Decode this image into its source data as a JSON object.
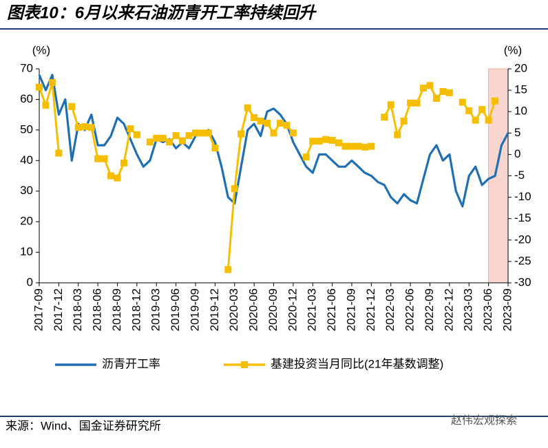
{
  "chart_data": {
    "type": "line",
    "title": "图表10：6月以来石油沥青开工率持续回升",
    "ylabel": "(%)",
    "y2label": "(%)",
    "source": "来源：Wind、国金证券研究所",
    "watermark": "赵伟宏观探索",
    "categories": [
      "2017-09",
      null,
      null,
      "2017-12",
      null,
      null,
      "2018-03",
      null,
      null,
      "2018-06",
      null,
      null,
      "2018-09",
      null,
      null,
      "2018-12",
      null,
      null,
      "2019-03",
      null,
      null,
      "2019-06",
      null,
      null,
      "2019-09",
      null,
      null,
      "2019-12",
      null,
      null,
      "2020-03",
      null,
      null,
      "2020-06",
      null,
      null,
      "2020-09",
      null,
      null,
      "2020-12",
      null,
      null,
      "2021-03",
      null,
      null,
      "2021-06",
      null,
      null,
      "2021-09",
      null,
      null,
      "2021-12",
      null,
      null,
      "2022-03",
      null,
      null,
      "2022-06",
      null,
      null,
      "2022-09",
      null,
      null,
      "2022-12",
      null,
      null,
      "2023-03",
      null,
      null,
      "2023-06",
      null,
      null,
      "2023-09"
    ],
    "ylim": [
      0,
      70
    ],
    "yticks": [
      0,
      10,
      20,
      30,
      40,
      50,
      60,
      70
    ],
    "y2lim": [
      -30,
      20
    ],
    "y2ticks": [
      -30,
      -25,
      -20,
      -15,
      -10,
      -5,
      0,
      5,
      10,
      15,
      20
    ],
    "shade": {
      "start": "2023-06",
      "end": "2023-09",
      "color": "#f8d5cf"
    },
    "series": [
      {
        "name": "沥青开工率",
        "color": "#1f6fb5",
        "axis": "y",
        "values": [
          68,
          63,
          68,
          55,
          60,
          40,
          52,
          50,
          55,
          45,
          45,
          48,
          54,
          52,
          47,
          42,
          38,
          40,
          47,
          46,
          47,
          44,
          46,
          44,
          48,
          49,
          50,
          46,
          38,
          28,
          26,
          38,
          50,
          52,
          48,
          56,
          57,
          55,
          52,
          46,
          42,
          38,
          36,
          42,
          42,
          40,
          38,
          38,
          40,
          38,
          36,
          35,
          33,
          32,
          28,
          26,
          29,
          27,
          26,
          34,
          42,
          45,
          40,
          42,
          30,
          25,
          35,
          38,
          32,
          34,
          35,
          45,
          49
        ]
      },
      {
        "name": "基建投资当月同比(21年基数调整)",
        "color": "#f5be00",
        "axis": "y2",
        "marker": "square",
        "values": [
          15.7,
          11.5,
          16.8,
          0.3,
          null,
          11.2,
          6.3,
          6.5,
          6.3,
          -1,
          -1,
          -5,
          -5.5,
          -2,
          6,
          4.6,
          null,
          2.9,
          3.8,
          3.8,
          2.9,
          4.4,
          3.2,
          4.4,
          5,
          5,
          5,
          1.5,
          null,
          -26.9,
          -8,
          4.8,
          10.9,
          8.6,
          7.8,
          7.3,
          5,
          7.3,
          6.8,
          5,
          null,
          -0.6,
          3.1,
          3.1,
          3.5,
          3.3,
          2.7,
          1.9,
          1.9,
          1.9,
          1.7,
          1.9,
          null,
          8.7,
          11.6,
          4.6,
          7.8,
          12,
          12,
          15.5,
          16.1,
          13.1,
          14.7,
          14.4,
          null,
          12.2,
          10.2,
          8,
          10.5,
          8,
          12.5,
          null,
          null
        ]
      }
    ]
  }
}
